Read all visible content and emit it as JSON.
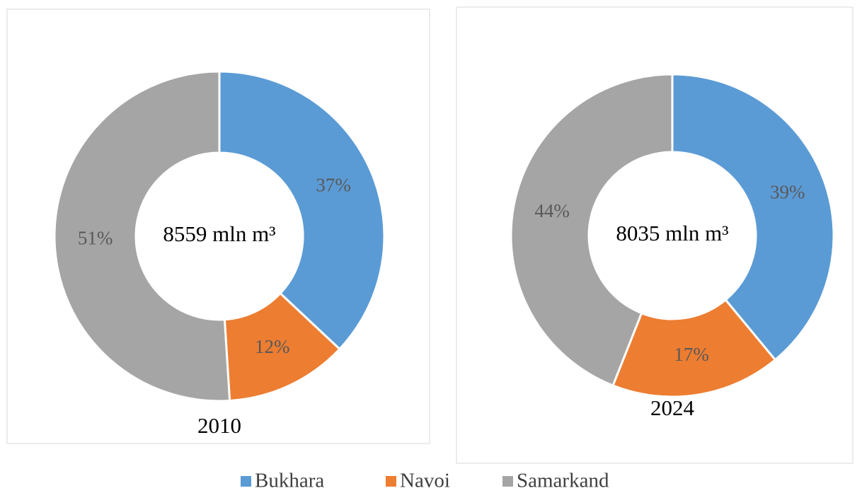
{
  "chart_data": [
    {
      "type": "pie",
      "title": "2010",
      "center_label": "8559 mln m³",
      "values": [
        37,
        12,
        51
      ],
      "value_labels": [
        "37%",
        "12%",
        "51%"
      ]
    },
    {
      "type": "pie",
      "title": "2024",
      "center_label": "8035 mln m³",
      "values": [
        39,
        17,
        44
      ],
      "value_labels": [
        "39%",
        "17%",
        "44%"
      ]
    }
  ],
  "legend": {
    "categories": [
      "Bukhara",
      "Navoi",
      "Samarkand"
    ],
    "colors": [
      "#5b9bd5",
      "#ed7d31",
      "#a5a5a5"
    ]
  }
}
